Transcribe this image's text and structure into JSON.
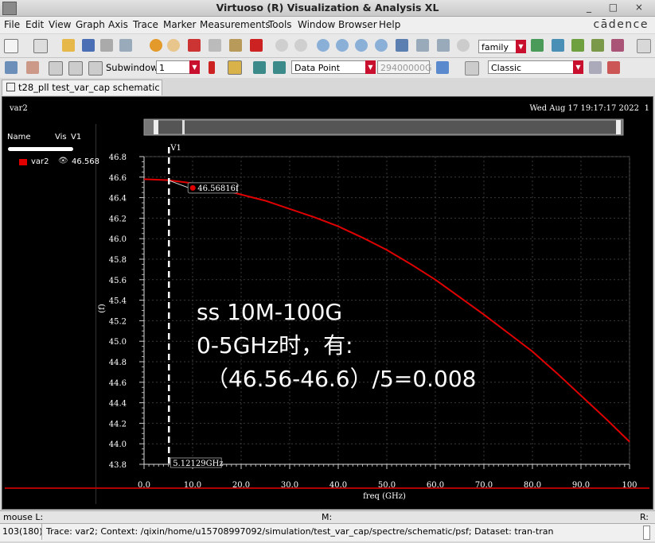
{
  "window": {
    "title": "Virtuoso (R) Visualization & Analysis XL",
    "controls": "_ □ ×"
  },
  "menu": {
    "items": [
      "File",
      "Edit",
      "View",
      "Graph",
      "Axis",
      "Trace",
      "Marker",
      "Measurements",
      "Tools",
      "Window",
      "Browser",
      "Help"
    ],
    "brand": "cādence"
  },
  "toolbar": {
    "family_value": "family",
    "subwindow_label": "Subwindow:",
    "subwindow_value": "1",
    "marker_type": "Data Point",
    "marker_value": "29400000G",
    "style_value": "Classic"
  },
  "tab": {
    "label": "t28_pll test_var_cap schematic"
  },
  "plot": {
    "name": "var2",
    "timestamp": "Wed Aug 17 19:17:17 2022",
    "index": "1",
    "legend": {
      "col_name": "Name",
      "col_vis": "Vis",
      "col_v1": "V1",
      "trace": "var2",
      "v1_value": "46.568"
    },
    "vmarker_label": "V1",
    "vmarker_x_label": "5.12129GHz",
    "point_label": "46.56816f",
    "annotation": [
      "ss 10M-100G",
      "0-5GHz时，有:",
      "（46.56-46.6）/5=0.008"
    ],
    "colors": {
      "trace": "#e00000",
      "background": "#000000",
      "grid": "#3a3a3a",
      "scroll": "#c00000"
    }
  },
  "status": {
    "mouse_l": "mouse L:",
    "m": "M:",
    "r": "R:",
    "count": "103(180)",
    "message": "Trace: var2; Context: /qixin/home/u15708997092/simulation/test_var_cap/spectre/schematic/psf; Dataset: tran-tran"
  },
  "chart_data": {
    "type": "line",
    "xlabel": "freq (GHz)",
    "ylabel": "(f)",
    "xlim": [
      0,
      100
    ],
    "ylim": [
      43.8,
      46.8
    ],
    "x_ticks": [
      "0.0",
      "10.0",
      "20.0",
      "30.0",
      "40.0",
      "50.0",
      "60.0",
      "70.0",
      "80.0",
      "90.0",
      "100"
    ],
    "y_ticks": [
      "43.8",
      "44.0",
      "44.2",
      "44.4",
      "44.6",
      "44.8",
      "45.0",
      "45.2",
      "45.4",
      "45.6",
      "45.8",
      "46.0",
      "46.2",
      "46.4",
      "46.6",
      "46.8"
    ],
    "series": [
      {
        "name": "var2",
        "x": [
          0,
          5,
          10,
          15,
          20,
          25,
          30,
          35,
          40,
          45,
          50,
          55,
          60,
          65,
          70,
          75,
          80,
          85,
          90,
          95,
          100
        ],
        "values": [
          46.58,
          46.57,
          46.54,
          46.49,
          46.43,
          46.37,
          46.29,
          46.21,
          46.12,
          46.01,
          45.89,
          45.75,
          45.6,
          45.43,
          45.26,
          45.08,
          44.9,
          44.69,
          44.47,
          44.25,
          44.02
        ]
      }
    ],
    "marker": {
      "x": 5.12129,
      "y": 46.56816
    },
    "grid": true
  }
}
